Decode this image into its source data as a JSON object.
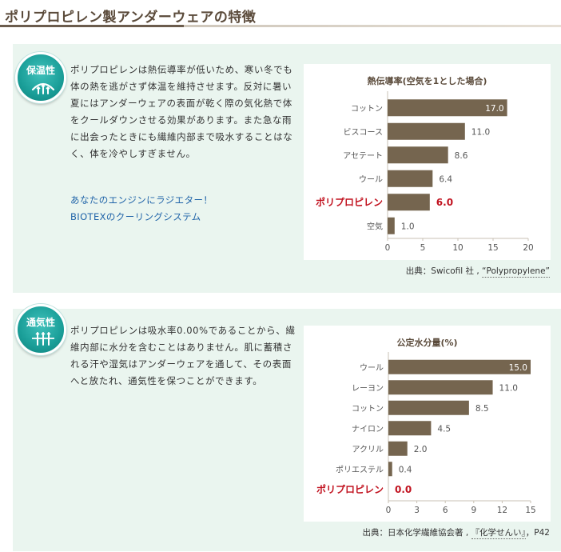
{
  "page": {
    "title": "ポリプロピレン製アンダーウェアの特徴"
  },
  "sections": [
    {
      "badge": "保温性",
      "icon": "heat-retention-icon",
      "text": "ポリプロピレンは熱伝導率が低いため、寒い冬でも体の熱を逃がさず体温を維持させます。反対に暑い夏にはアンダーウェアの表面が乾く際の気化熱で体をクールダウンさせる効果があります。また急な雨に出会ったときにも繊維内部まで吸水することはなく、体を冷やしすぎません。",
      "links": [
        "あなたのエンジンにラジエター！",
        "BIOTEXのクーリングシステム"
      ],
      "source_prefix": "出典：Swicofil 社 , ",
      "source_pub": "“Polypropylene”"
    },
    {
      "badge": "通気性",
      "icon": "breathability-icon",
      "text": "ポリプロピレンは吸水率0.00%であることから、繊維内部に水分を含むことはありません。肌に蓄積される汗や湿気はアンダーウェアを通して、その表面へと放たれ、通気性を保つことができます。",
      "links": [],
      "source_prefix": "出典：日本化学繊維協会著 , ",
      "source_pub": "『化学せんい』",
      "source_suffix": "，P42"
    }
  ],
  "chart_data": [
    {
      "type": "bar",
      "orientation": "horizontal",
      "title": "熱伝導率(空気を1とした場合)",
      "categories": [
        "コットン",
        "ビスコース",
        "アセテート",
        "ウール",
        "ポリプロピレン",
        "空気"
      ],
      "values": [
        17.0,
        11.0,
        8.6,
        6.4,
        6.0,
        1.0
      ],
      "value_labels": [
        "17.0",
        "11.0",
        "8.6",
        "6.4",
        "6.0",
        "1.0"
      ],
      "highlight": "ポリプロピレン",
      "xlim": [
        0,
        20
      ],
      "xticks": [
        0,
        5,
        10,
        15,
        20
      ],
      "bar_color": "#75654f",
      "highlight_color": "#c1121f"
    },
    {
      "type": "bar",
      "orientation": "horizontal",
      "title": "公定水分量(%)",
      "categories": [
        "ウール",
        "レーヨン",
        "コットン",
        "ナイロン",
        "アクリル",
        "ポリエステル",
        "ポリプロピレン"
      ],
      "values": [
        15.0,
        11.0,
        8.5,
        4.5,
        2.0,
        0.4,
        0.0
      ],
      "value_labels": [
        "15.0",
        "11.0",
        "8.5",
        "4.5",
        "2.0",
        "0.4",
        "0.0"
      ],
      "highlight": "ポリプロピレン",
      "xlim": [
        0,
        15
      ],
      "xticks": [
        0,
        3,
        6,
        9,
        12,
        15
      ],
      "bar_color": "#75654f",
      "highlight_color": "#c1121f"
    }
  ]
}
